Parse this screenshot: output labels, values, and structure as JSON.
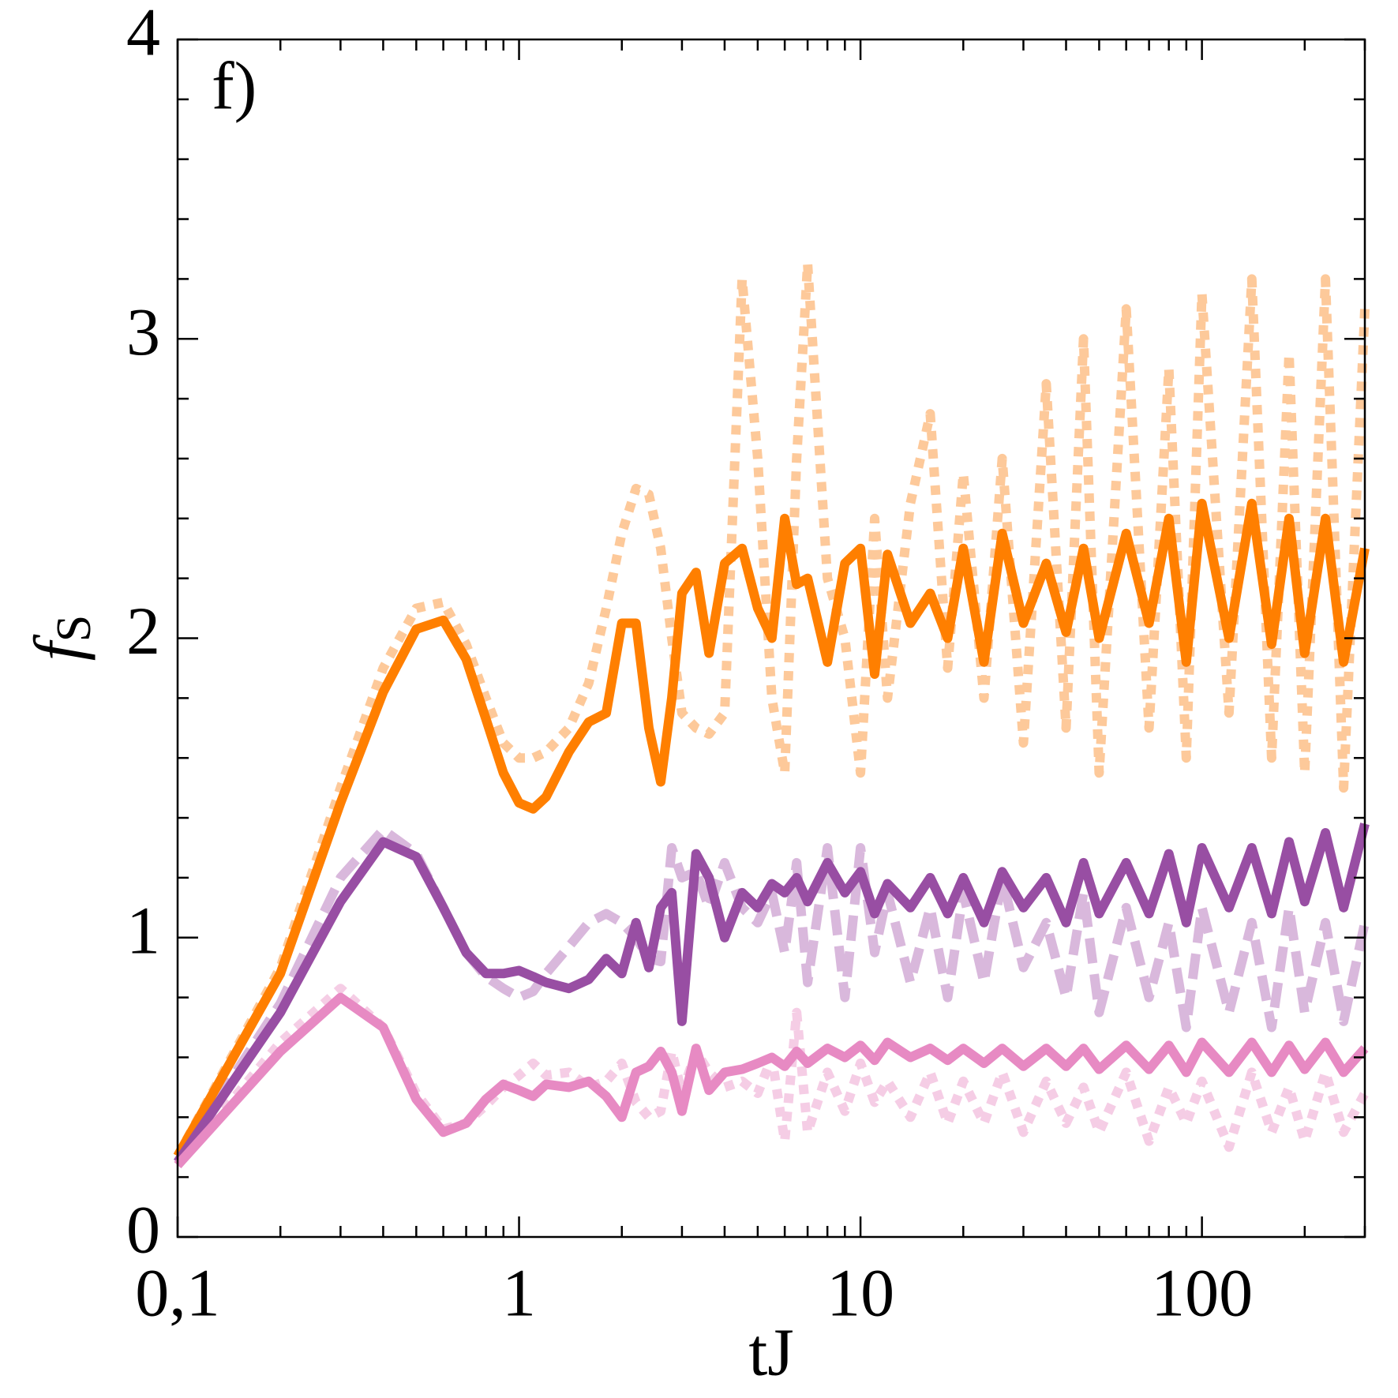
{
  "chart_data": {
    "type": "line",
    "annotation": "f)",
    "xlabel": "tJ",
    "ylabel": {
      "text": "f",
      "subscript": "S"
    },
    "xscale": "log",
    "xlim": [
      0.1,
      300
    ],
    "ylim": [
      0,
      4
    ],
    "xticks": [
      {
        "value": 0.1,
        "label": "0,1"
      },
      1,
      10,
      100
    ],
    "yticks": [
      0,
      1,
      2,
      3,
      4
    ],
    "xminor": [
      0.2,
      0.3,
      0.4,
      0.5,
      0.6,
      0.7,
      0.8,
      0.9,
      2,
      3,
      4,
      5,
      6,
      7,
      8,
      9,
      20,
      30,
      40,
      50,
      60,
      70,
      80,
      90,
      200,
      300
    ],
    "yminor": [
      0.2,
      0.4,
      0.6,
      0.8,
      1.2,
      1.4,
      1.6,
      1.8,
      2.2,
      2.4,
      2.6,
      2.8,
      3.2,
      3.4,
      3.6,
      3.8
    ],
    "x": [
      0.1,
      0.2,
      0.3,
      0.4,
      0.5,
      0.6,
      0.7,
      0.8,
      0.9,
      1.0,
      1.1,
      1.2,
      1.4,
      1.6,
      1.8,
      2.0,
      2.2,
      2.4,
      2.6,
      2.8,
      3.0,
      3.3,
      3.6,
      4.0,
      4.5,
      5,
      5.5,
      6,
      6.5,
      7,
      8,
      9,
      10,
      11,
      12,
      14,
      16,
      18,
      20,
      23,
      26,
      30,
      35,
      40,
      45,
      50,
      60,
      70,
      80,
      90,
      100,
      120,
      140,
      160,
      180,
      200,
      230,
      260,
      300
    ],
    "series": [
      {
        "color": "#fdc99a",
        "dash": "dotted",
        "values": [
          0.27,
          0.9,
          1.5,
          1.9,
          2.1,
          2.12,
          1.98,
          1.8,
          1.65,
          1.6,
          1.6,
          1.62,
          1.7,
          1.85,
          2.1,
          2.35,
          2.5,
          2.48,
          2.3,
          2.0,
          1.75,
          1.7,
          1.68,
          1.75,
          3.2,
          2.6,
          1.8,
          1.55,
          2.6,
          3.25,
          2.2,
          2.0,
          1.55,
          2.4,
          1.8,
          2.45,
          2.75,
          1.9,
          2.55,
          1.8,
          2.6,
          1.65,
          2.85,
          1.7,
          3.0,
          1.55,
          3.1,
          1.7,
          2.9,
          1.6,
          3.15,
          1.75,
          3.2,
          1.6,
          2.95,
          1.55,
          3.2,
          1.5,
          3.1
        ]
      },
      {
        "color": "#d9b8dc",
        "dash": "dashed",
        "values": [
          0.25,
          0.78,
          1.2,
          1.36,
          1.28,
          1.1,
          0.95,
          0.87,
          0.83,
          0.8,
          0.82,
          0.88,
          0.97,
          1.05,
          1.08,
          1.05,
          1.0,
          0.93,
          0.92,
          1.3,
          1.2,
          1.22,
          1.1,
          1.25,
          1.1,
          1.05,
          1.15,
          0.95,
          1.25,
          0.85,
          1.3,
          0.8,
          1.3,
          0.95,
          1.15,
          0.85,
          1.1,
          0.8,
          1.15,
          0.85,
          1.2,
          0.9,
          1.05,
          0.8,
          1.15,
          0.75,
          1.1,
          0.8,
          1.05,
          0.7,
          1.1,
          0.75,
          1.05,
          0.7,
          1.1,
          0.75,
          1.05,
          0.72,
          1.05
        ]
      },
      {
        "color": "#f5cde5",
        "dash": "dotted",
        "values": [
          0.24,
          0.65,
          0.83,
          0.7,
          0.48,
          0.36,
          0.38,
          0.44,
          0.5,
          0.54,
          0.58,
          0.54,
          0.55,
          0.5,
          0.52,
          0.58,
          0.45,
          0.4,
          0.42,
          0.62,
          0.48,
          0.62,
          0.55,
          0.5,
          0.52,
          0.48,
          0.6,
          0.32,
          0.75,
          0.35,
          0.55,
          0.42,
          0.58,
          0.45,
          0.52,
          0.4,
          0.55,
          0.38,
          0.52,
          0.38,
          0.55,
          0.35,
          0.52,
          0.38,
          0.5,
          0.35,
          0.55,
          0.32,
          0.5,
          0.38,
          0.52,
          0.3,
          0.55,
          0.35,
          0.5,
          0.32,
          0.55,
          0.35,
          0.48
        ]
      },
      {
        "color": "#ff7f00",
        "dash": "solid",
        "values": [
          0.27,
          0.88,
          1.45,
          1.82,
          2.03,
          2.06,
          1.93,
          1.73,
          1.55,
          1.45,
          1.43,
          1.47,
          1.62,
          1.72,
          1.75,
          2.05,
          2.05,
          1.7,
          1.52,
          1.8,
          2.15,
          2.22,
          1.95,
          2.25,
          2.3,
          2.1,
          2.0,
          2.4,
          2.18,
          2.2,
          1.92,
          2.25,
          2.3,
          1.88,
          2.28,
          2.05,
          2.15,
          2.0,
          2.3,
          1.92,
          2.35,
          2.05,
          2.25,
          2.02,
          2.3,
          2.0,
          2.35,
          2.05,
          2.4,
          1.92,
          2.45,
          2.0,
          2.45,
          1.98,
          2.4,
          1.95,
          2.4,
          1.92,
          2.3
        ]
      },
      {
        "color": "#984ea3",
        "dash": "solid",
        "values": [
          0.25,
          0.75,
          1.12,
          1.32,
          1.27,
          1.1,
          0.95,
          0.88,
          0.88,
          0.89,
          0.87,
          0.85,
          0.83,
          0.86,
          0.93,
          0.88,
          1.05,
          0.9,
          1.1,
          1.15,
          0.72,
          1.28,
          1.2,
          1.0,
          1.15,
          1.1,
          1.18,
          1.15,
          1.2,
          1.12,
          1.25,
          1.15,
          1.22,
          1.08,
          1.18,
          1.1,
          1.2,
          1.08,
          1.2,
          1.05,
          1.22,
          1.1,
          1.2,
          1.05,
          1.25,
          1.08,
          1.25,
          1.08,
          1.28,
          1.05,
          1.3,
          1.1,
          1.3,
          1.08,
          1.32,
          1.12,
          1.35,
          1.1,
          1.38
        ]
      },
      {
        "color": "#e78ac3",
        "dash": "solid",
        "values": [
          0.24,
          0.62,
          0.8,
          0.7,
          0.46,
          0.35,
          0.38,
          0.46,
          0.51,
          0.49,
          0.47,
          0.51,
          0.5,
          0.52,
          0.47,
          0.4,
          0.55,
          0.57,
          0.62,
          0.55,
          0.42,
          0.63,
          0.49,
          0.55,
          0.56,
          0.58,
          0.6,
          0.57,
          0.62,
          0.58,
          0.63,
          0.6,
          0.64,
          0.59,
          0.65,
          0.6,
          0.63,
          0.59,
          0.63,
          0.58,
          0.63,
          0.57,
          0.63,
          0.57,
          0.63,
          0.56,
          0.64,
          0.56,
          0.64,
          0.55,
          0.65,
          0.55,
          0.65,
          0.55,
          0.64,
          0.56,
          0.65,
          0.55,
          0.63
        ]
      }
    ]
  }
}
